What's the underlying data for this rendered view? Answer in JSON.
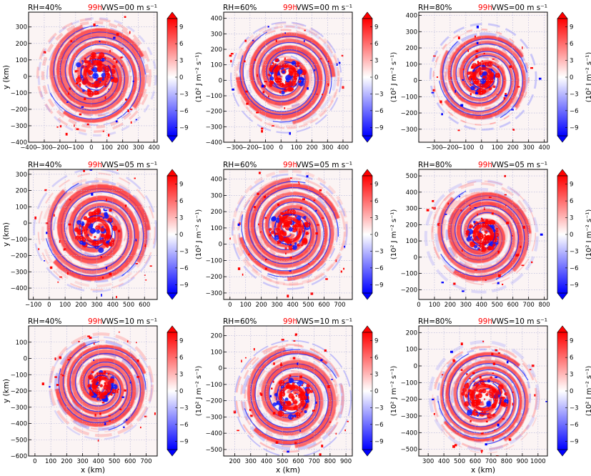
{
  "figure": {
    "colorbar_label": "(10² J m⁻² s⁻¹)",
    "colorbar_ticks": [
      "9",
      "6",
      "3",
      "0",
      "−3",
      "−6",
      "−9"
    ],
    "colorbar_values": [
      9,
      6,
      3,
      0,
      -3,
      -6,
      -9
    ],
    "xlabel": "x (km)",
    "ylabel": "y (km)",
    "time_label": "99h",
    "colors": {
      "positive": "#ff0000",
      "negative": "#0000ff",
      "neutral": "#ffffff",
      "time": "#ff0000",
      "grid": "#b0b0d8"
    }
  },
  "chart_data": [
    {
      "type": "heatmap",
      "rh": "RH=40%",
      "time": "99h",
      "vws": "VWS=00 m s⁻¹",
      "xlim": [
        -400,
        420
      ],
      "ylim": [
        -400,
        390
      ],
      "xticks": [
        "−400",
        "−300",
        "−200",
        "−100",
        "0",
        "100",
        "200",
        "300",
        "400"
      ],
      "xtick_vals": [
        -400,
        -300,
        -200,
        -100,
        0,
        100,
        200,
        300,
        400
      ],
      "yticks": [
        "300",
        "200",
        "100",
        "0",
        "−100",
        "−200",
        "−300",
        "−400"
      ],
      "ytick_vals": [
        300,
        200,
        100,
        0,
        -100,
        -200,
        -300,
        -400
      ],
      "center": [
        30,
        10
      ],
      "core_radius_km": 130,
      "outer_radius_km": 370,
      "show_xlabel": false,
      "show_ylabel": true
    },
    {
      "type": "heatmap",
      "rh": "RH=60%",
      "time": "99h",
      "vws": "VWS=00 m s⁻¹",
      "xlim": [
        -370,
        460
      ],
      "ylim": [
        -400,
        440
      ],
      "xticks": [
        "−300",
        "−200",
        "−100",
        "0",
        "100",
        "200",
        "300",
        "400"
      ],
      "xtick_vals": [
        -300,
        -200,
        -100,
        0,
        100,
        200,
        300,
        400
      ],
      "yticks": [
        "400",
        "300",
        "200",
        "100",
        "0",
        "−100",
        "−200",
        "−300",
        "−400"
      ],
      "ytick_vals": [
        400,
        300,
        200,
        100,
        0,
        -100,
        -200,
        -300,
        -400
      ],
      "center": [
        30,
        30
      ],
      "core_radius_km": 120,
      "outer_radius_km": 360,
      "show_xlabel": false,
      "show_ylabel": false
    },
    {
      "type": "heatmap",
      "rh": "RH=80%",
      "time": "99h",
      "vws": "VWS=00 m s⁻¹",
      "xlim": [
        -400,
        420
      ],
      "ylim": [
        -380,
        420
      ],
      "xticks": [
        "−300",
        "−200",
        "−100",
        "0",
        "100",
        "200",
        "300",
        "400"
      ],
      "xtick_vals": [
        -300,
        -200,
        -100,
        0,
        100,
        200,
        300,
        400
      ],
      "yticks": [
        "400",
        "300",
        "200",
        "100",
        "0",
        "−100",
        "−200",
        "−300"
      ],
      "ytick_vals": [
        400,
        300,
        200,
        100,
        0,
        -100,
        -200,
        -300
      ],
      "center": [
        10,
        20
      ],
      "core_radius_km": 100,
      "outer_radius_km": 330,
      "show_xlabel": false,
      "show_ylabel": false
    },
    {
      "type": "heatmap",
      "rh": "RH=40%",
      "time": "99h",
      "vws": "VWS=05 m s⁻¹",
      "xlim": [
        -130,
        680
      ],
      "ylim": [
        -470,
        330
      ],
      "xticks": [
        "−100",
        "0",
        "100",
        "200",
        "300",
        "400",
        "500",
        "600"
      ],
      "xtick_vals": [
        -100,
        0,
        100,
        200,
        300,
        400,
        500,
        600
      ],
      "yticks": [
        "300",
        "200",
        "100",
        "0",
        "−100",
        "−200",
        "−300",
        "−400"
      ],
      "ytick_vals": [
        300,
        200,
        100,
        0,
        -100,
        -200,
        -300,
        -400
      ],
      "center": [
        300,
        -50
      ],
      "core_radius_km": 130,
      "outer_radius_km": 380,
      "show_xlabel": false,
      "show_ylabel": true
    },
    {
      "type": "heatmap",
      "rh": "RH=60%",
      "time": "99h",
      "vws": "VWS=05 m s⁻¹",
      "xlim": [
        -40,
        780
      ],
      "ylim": [
        -340,
        460
      ],
      "xticks": [
        "0",
        "100",
        "200",
        "300",
        "400",
        "500",
        "600",
        "700"
      ],
      "xtick_vals": [
        0,
        100,
        200,
        300,
        400,
        500,
        600,
        700
      ],
      "yticks": [
        "400",
        "300",
        "200",
        "100",
        "0",
        "−100",
        "−200",
        "−300"
      ],
      "ytick_vals": [
        400,
        300,
        200,
        100,
        0,
        -100,
        -200,
        -300
      ],
      "center": [
        380,
        90
      ],
      "core_radius_km": 130,
      "outer_radius_km": 370,
      "show_xlabel": false,
      "show_ylabel": false
    },
    {
      "type": "heatmap",
      "rh": "RH=80%",
      "time": "99h",
      "vws": "VWS=05 m s⁻¹",
      "xlim": [
        0,
        820
      ],
      "ylim": [
        -260,
        540
      ],
      "xticks": [
        "0",
        "100",
        "200",
        "300",
        "400",
        "500",
        "600",
        "700",
        "800"
      ],
      "xtick_vals": [
        0,
        100,
        200,
        300,
        400,
        500,
        600,
        700,
        800
      ],
      "yticks": [
        "500",
        "400",
        "300",
        "200",
        "100",
        "0",
        "−100",
        "−200"
      ],
      "ytick_vals": [
        500,
        400,
        300,
        200,
        100,
        0,
        -100,
        -200
      ],
      "center": [
        410,
        140
      ],
      "core_radius_km": 100,
      "outer_radius_km": 350,
      "show_xlabel": false,
      "show_ylabel": false
    },
    {
      "type": "heatmap",
      "rh": "RH=40%",
      "time": "99h",
      "vws": "VWS=10 m s⁻¹",
      "xlim": [
        -40,
        770
      ],
      "ylim": [
        -600,
        200
      ],
      "xticks": [
        "0",
        "100",
        "200",
        "300",
        "400",
        "500",
        "600",
        "700"
      ],
      "xtick_vals": [
        0,
        100,
        200,
        300,
        400,
        500,
        600,
        700
      ],
      "yticks": [
        "100",
        "0",
        "−100",
        "−200",
        "−300",
        "−400",
        "−500",
        "−600"
      ],
      "ytick_vals": [
        100,
        0,
        -100,
        -200,
        -300,
        -400,
        -500,
        -600
      ],
      "center": [
        420,
        -170
      ],
      "core_radius_km": 90,
      "outer_radius_km": 330,
      "show_xlabel": true,
      "show_ylabel": true
    },
    {
      "type": "heatmap",
      "rh": "RH=60%",
      "time": "99h",
      "vws": "VWS=10 m s⁻¹",
      "xlim": [
        130,
        940
      ],
      "ylim": [
        -540,
        260
      ],
      "xticks": [
        "200",
        "300",
        "400",
        "500",
        "600",
        "700",
        "800",
        "900"
      ],
      "xtick_vals": [
        200,
        300,
        400,
        500,
        600,
        700,
        800,
        900
      ],
      "yticks": [
        "200",
        "100",
        "0",
        "−100",
        "−200",
        "−300",
        "−400",
        "−500"
      ],
      "ytick_vals": [
        200,
        100,
        0,
        -100,
        -200,
        -300,
        -400,
        -500
      ],
      "center": [
        560,
        -180
      ],
      "core_radius_km": 130,
      "outer_radius_km": 360,
      "show_xlabel": true,
      "show_ylabel": false
    },
    {
      "type": "heatmap",
      "rh": "RH=80%",
      "time": "99h",
      "vws": "VWS=10 m s⁻¹",
      "xlim": [
        240,
        1060
      ],
      "ylim": [
        -540,
        240
      ],
      "xticks": [
        "300",
        "400",
        "500",
        "600",
        "700",
        "800",
        "900",
        "1000"
      ],
      "xtick_vals": [
        300,
        400,
        500,
        600,
        700,
        800,
        900,
        1000
      ],
      "yticks": [
        "200",
        "100",
        "0",
        "−100",
        "−200",
        "−300",
        "−400",
        "−500"
      ],
      "ytick_vals": [
        200,
        100,
        0,
        -100,
        -200,
        -300,
        -400,
        -500
      ],
      "center": [
        660,
        -190
      ],
      "core_radius_km": 140,
      "outer_radius_km": 350,
      "show_xlabel": true,
      "show_ylabel": false
    }
  ]
}
